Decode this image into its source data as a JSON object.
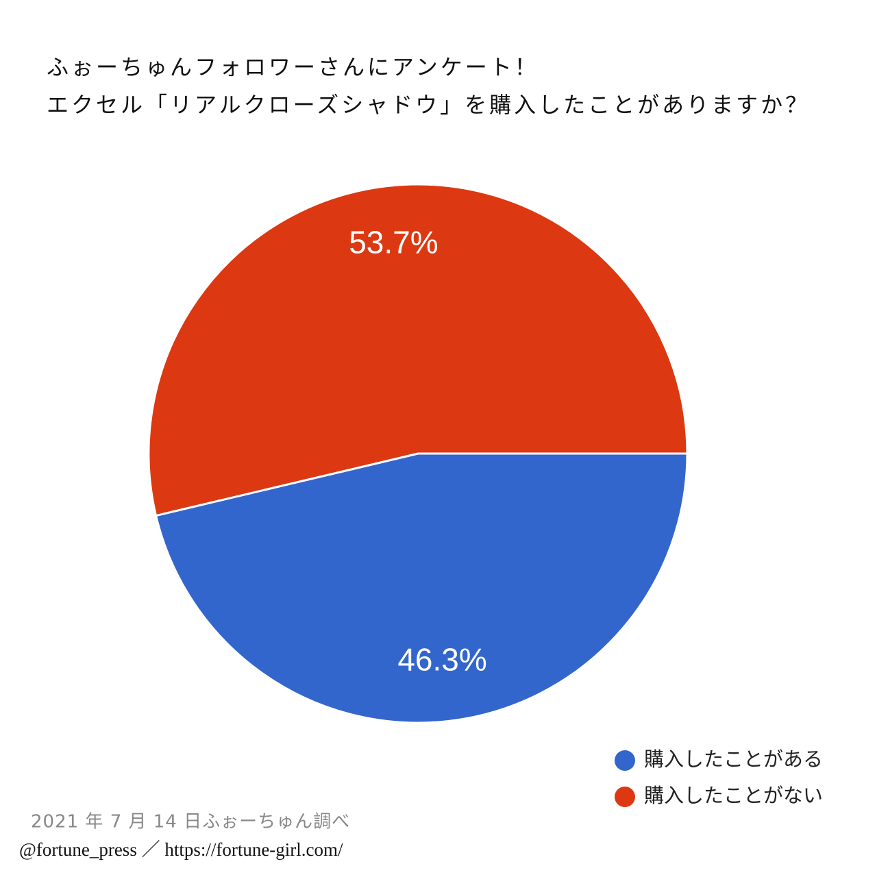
{
  "chart_data": {
    "type": "pie",
    "title": "ふぉーちゅんフォロワーさんにアンケート！",
    "subtitle": "エクセル「リアルクローズシャドウ」を購入したことがありますか？",
    "categories": [
      "購入したことがある",
      "購入したことがない"
    ],
    "values": [
      46.3,
      53.7
    ],
    "value_labels": [
      "46.3%",
      "53.7%"
    ],
    "colors": [
      "#3366cc",
      "#dc3912"
    ],
    "legend": "bottom-right",
    "source": "2021 年 7 月 14 日ふぉーちゅん調べ",
    "credit": "@fortune_press ／ https://fortune-girl.com/"
  }
}
